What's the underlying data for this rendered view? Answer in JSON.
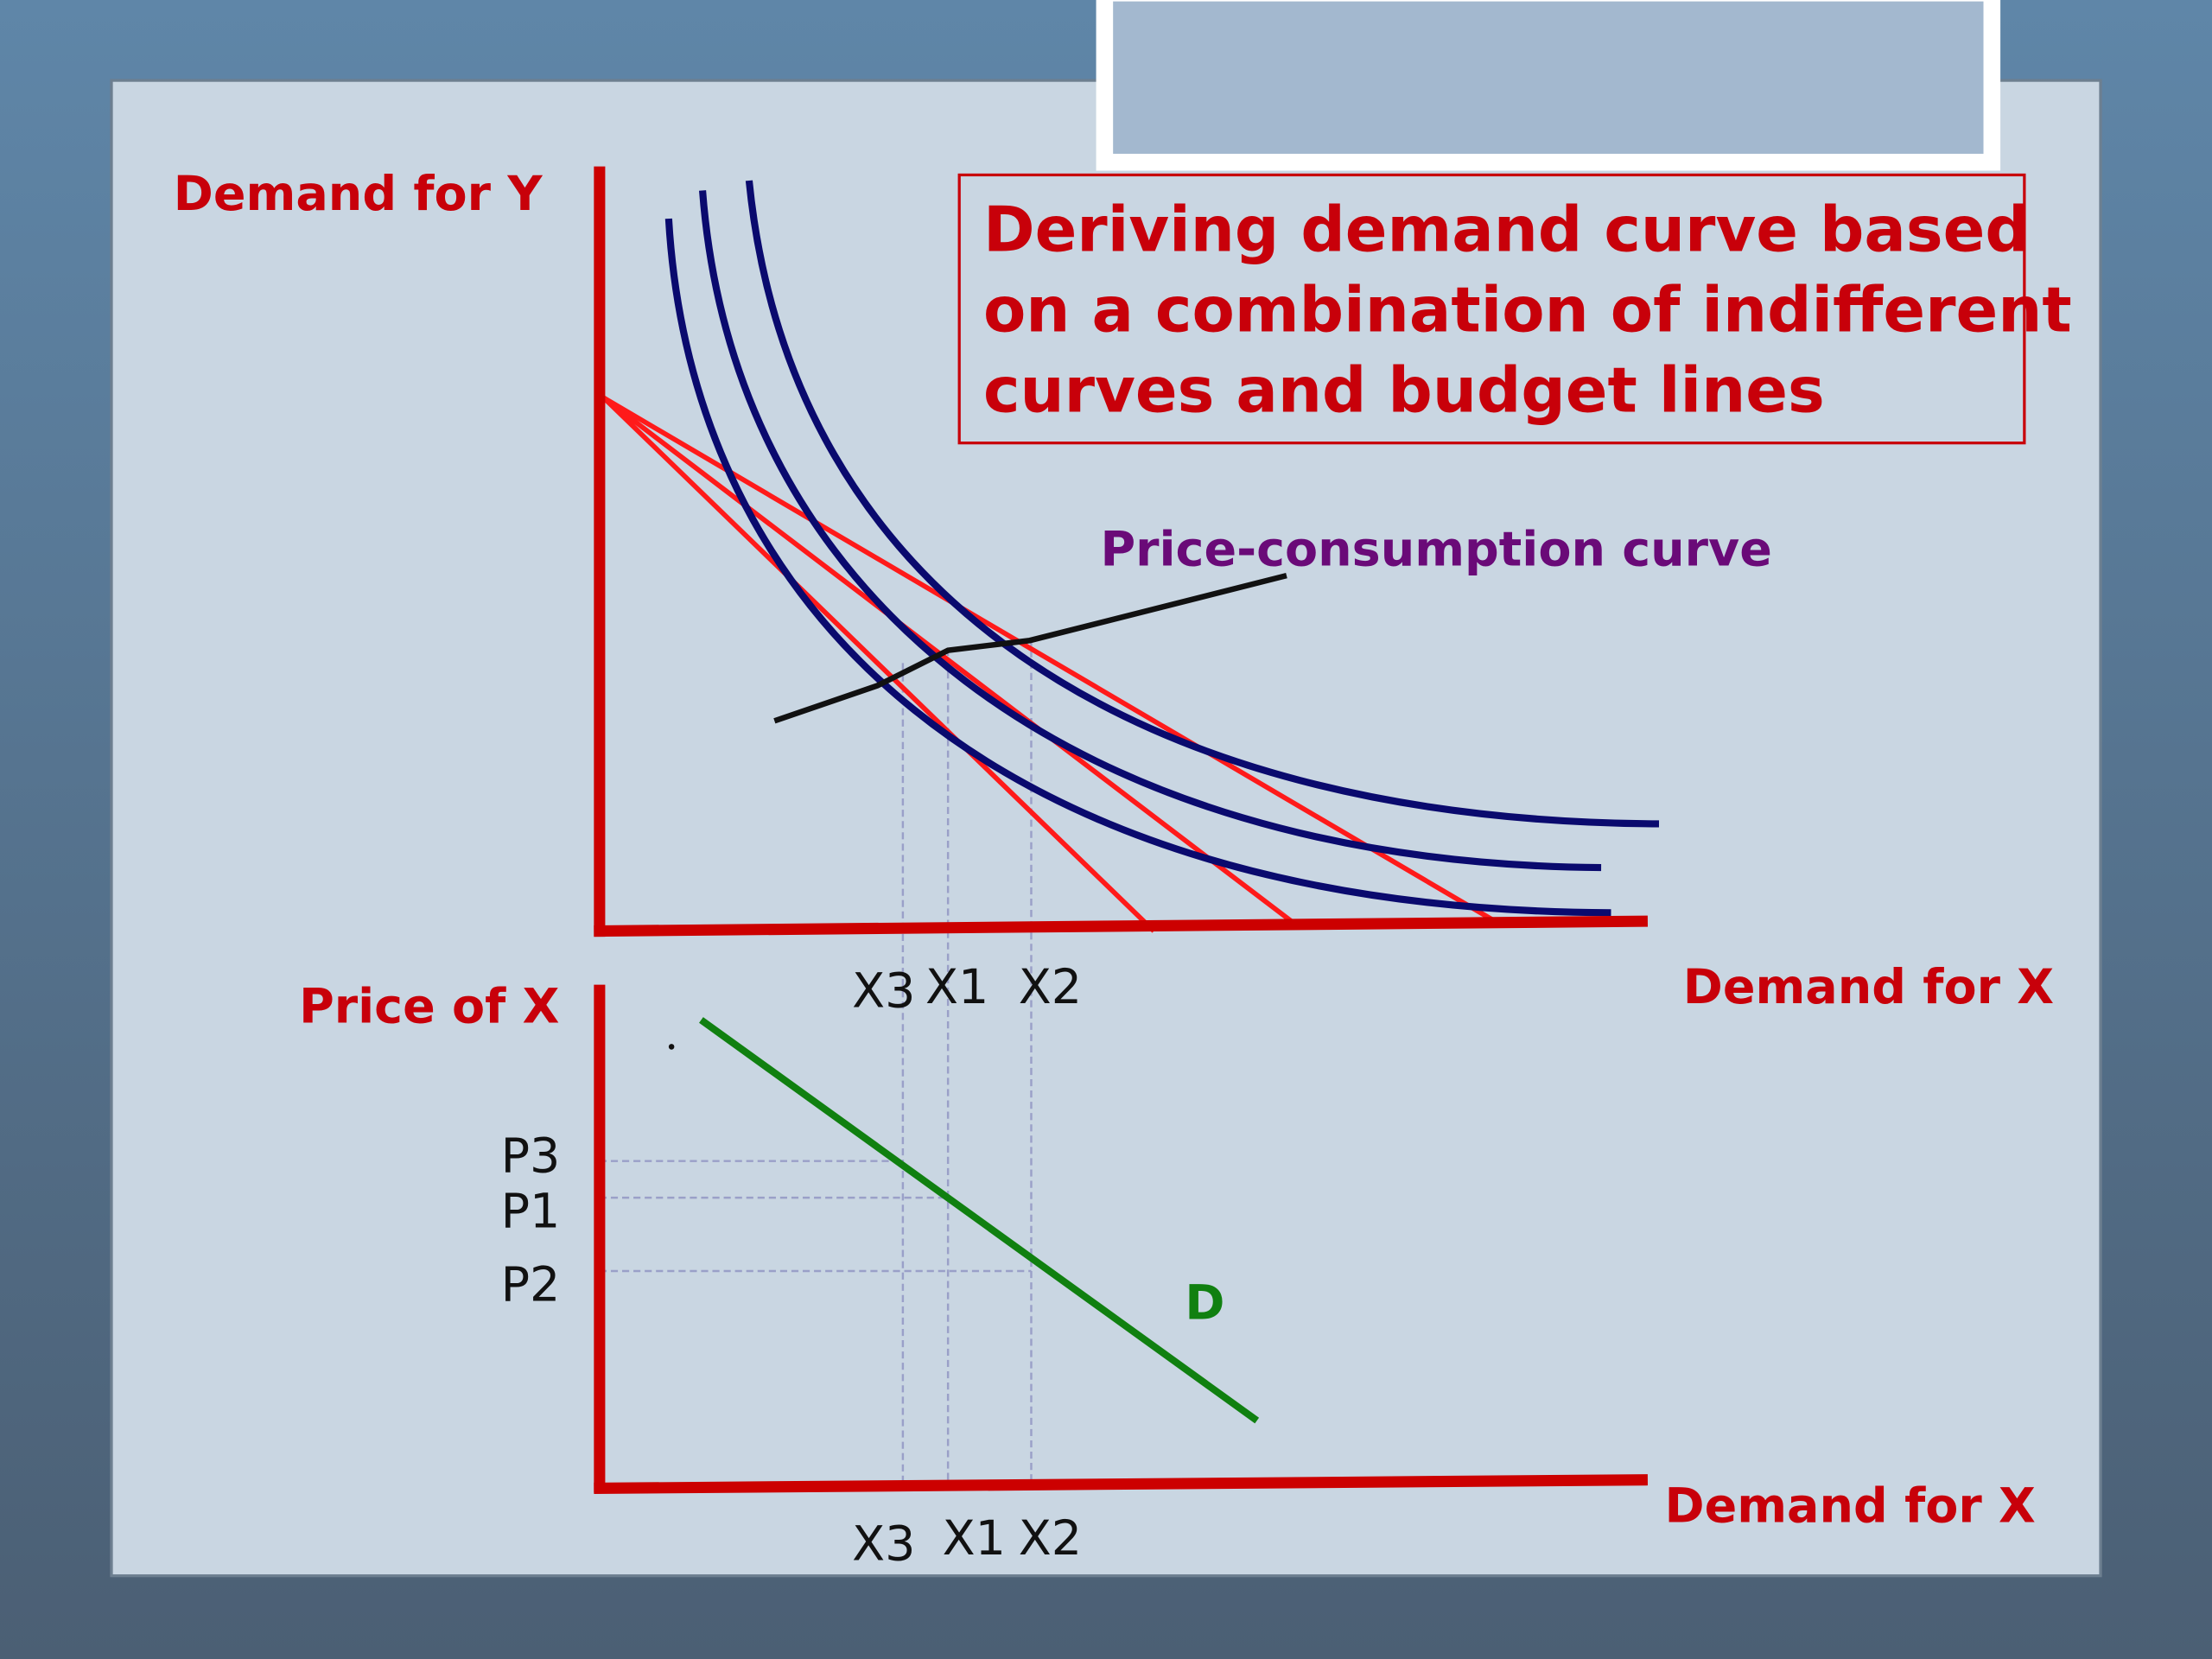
{
  "title": [
    "Deriving demand curve based",
    "on a combination of indifferent",
    "curves and budget lines"
  ],
  "upper_graph": {
    "y_axis_label": "Demand for Y",
    "x_axis_label": "Demand for X",
    "curve_label": "Price-consumption curve",
    "x_labels": [
      "X3",
      "X1",
      "X2"
    ]
  },
  "lower_graph": {
    "y_axis_label": "Price of X",
    "x_axis_label": "Demand for X",
    "x_labels": [
      "X3",
      "X1",
      "X2"
    ],
    "price_labels": [
      "P3",
      "P1",
      "P2"
    ],
    "curve_label": "D"
  }
}
